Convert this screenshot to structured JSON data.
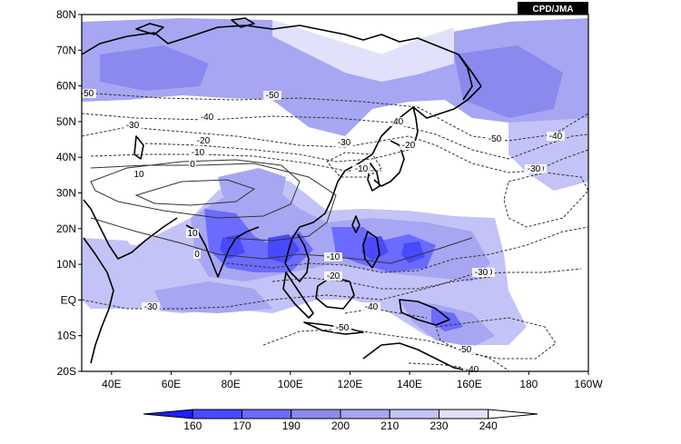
{
  "credit": "CPD/JMA",
  "map": {
    "lat_labels": [
      "80N",
      "70N",
      "60N",
      "50N",
      "40N",
      "30N",
      "20N",
      "10N",
      "EQ",
      "10S",
      "20S"
    ],
    "lon_labels": [
      "40E",
      "60E",
      "80E",
      "100E",
      "120E",
      "140E",
      "160E",
      "180",
      "160W"
    ],
    "lon_range": [
      30,
      200
    ],
    "lat_range": [
      -20,
      80
    ]
  },
  "colorbar": {
    "levels": [
      "160",
      "170",
      "190",
      "200",
      "210",
      "230",
      "240"
    ],
    "colors": [
      "#1f1fff",
      "#4949ff",
      "#6b6bff",
      "#8a8aee",
      "#a6a6f2",
      "#c3c3f7",
      "#e1e1fb"
    ]
  },
  "contour_labels": {
    "items": [
      "-50",
      "-40",
      "-30",
      "-20",
      "-10",
      "0",
      "10",
      "10",
      "0",
      "-10",
      "-20",
      "-30",
      "-40",
      "-50",
      "-50",
      "-40",
      "-30",
      "-20",
      "-10",
      "-40",
      "-30",
      "-50",
      "-50",
      "-40",
      "-50",
      "-30",
      "-30"
    ]
  },
  "shading": {
    "fill_light": "#e1e1fb",
    "fill_mid": "#a6a6f2",
    "fill_dark": "#6b6bff",
    "fill_darkest": "#4949ff"
  }
}
